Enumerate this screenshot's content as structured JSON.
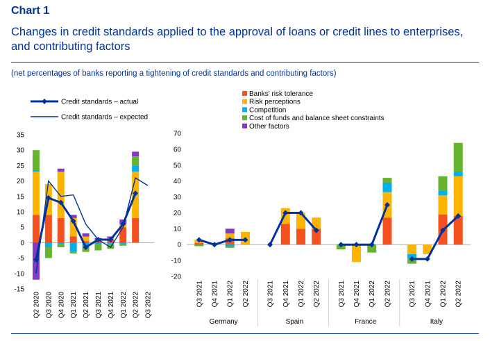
{
  "header": {
    "chart_number": "Chart 1",
    "title": "Changes in credit standards applied to the approval of loans or credit lines to enterprises, and contributing factors",
    "subtitle": "(net percentages of banks reporting a tightening of credit standards and contributing factors)"
  },
  "colors": {
    "banks_risk_tolerance": "#f4511e",
    "risk_perceptions": "#ffb400",
    "competition": "#00b1ea",
    "cost_of_funds": "#65b32e",
    "other_factors": "#8139c6",
    "credit_line": "#003299",
    "axis_text": "#000000"
  },
  "chart_data": [
    {
      "type": "bar",
      "id": "euro_area",
      "stacked": true,
      "categories": [
        "Q2 2020",
        "Q3 2020",
        "Q4 2020",
        "Q1 2021",
        "Q2 2021",
        "Q3 2021",
        "Q4 2021",
        "Q1 2022",
        "Q2 2022",
        "Q3 2022"
      ],
      "ylim": [
        -15,
        35
      ],
      "yticks": [
        "35",
        "30",
        "25",
        "20",
        "15",
        "10",
        "5",
        "0",
        "-5",
        "-10",
        "-15"
      ],
      "series": [
        {
          "name": "Banks' risk tolerance",
          "values": [
            9,
            9,
            8,
            2,
            0.5,
            0.5,
            1,
            5,
            8,
            null
          ]
        },
        {
          "name": "Risk perceptions",
          "values": [
            14,
            10,
            15,
            6,
            1.5,
            0.5,
            0.5,
            1,
            15,
            null
          ]
        },
        {
          "name": "Competition",
          "values": [
            0.5,
            -1.5,
            -0.5,
            -3,
            -1,
            -0.5,
            -0.5,
            -0.5,
            2,
            null
          ]
        },
        {
          "name": "Cost of funds and balance sheet constraints",
          "values": [
            6.5,
            -3.5,
            -1,
            -0.5,
            -2,
            -2,
            -1.5,
            -0.5,
            3,
            null
          ]
        },
        {
          "name": "Other factors",
          "values": [
            -12,
            0,
            1,
            1,
            1,
            0.5,
            0.5,
            1.5,
            1.5,
            null
          ]
        }
      ],
      "lines": [
        {
          "name": "Credit standards – actual",
          "values": [
            -5.5,
            14.5,
            13,
            7,
            -1.5,
            1,
            1,
            6,
            16,
            null
          ]
        },
        {
          "name": "Credit standards – expected",
          "values": [
            -10,
            20,
            15,
            15.5,
            6,
            1,
            -1.5,
            5,
            21,
            18.5
          ]
        }
      ]
    },
    {
      "type": "bar",
      "id": "by_country",
      "stacked": true,
      "ylim": [
        -20,
        70
      ],
      "yticks": [
        "70",
        "60",
        "50",
        "40",
        "30",
        "20",
        "10",
        "0",
        "-10",
        "-20"
      ],
      "groups": [
        {
          "name": "Germany",
          "categories": [
            "Q3 2021",
            "Q4 2021",
            "Q1 2022",
            "Q2 2022"
          ],
          "series": [
            {
              "name": "Banks' risk tolerance",
              "values": [
                1,
                0,
                4,
                0
              ]
            },
            {
              "name": "Risk perceptions",
              "values": [
                2,
                0,
                3,
                8
              ]
            },
            {
              "name": "Competition",
              "values": [
                0,
                0,
                -1,
                0
              ]
            },
            {
              "name": "Cost of funds and balance sheet constraints",
              "values": [
                -1,
                0,
                -1,
                0
              ]
            },
            {
              "name": "Other factors",
              "values": [
                0,
                0,
                3,
                0
              ]
            }
          ],
          "actual": [
            3,
            0,
            3,
            3
          ]
        },
        {
          "name": "Spain",
          "categories": [
            "Q3 2021",
            "Q4 2021",
            "Q1 2022",
            "Q2 2022"
          ],
          "series": [
            {
              "name": "Banks' risk tolerance",
              "values": [
                0,
                13,
                10,
                10
              ]
            },
            {
              "name": "Risk perceptions",
              "values": [
                0,
                10,
                10,
                7
              ]
            },
            {
              "name": "Competition",
              "values": [
                0,
                0,
                0,
                0
              ]
            },
            {
              "name": "Cost of funds and balance sheet constraints",
              "values": [
                0,
                0,
                0,
                0
              ]
            },
            {
              "name": "Other factors",
              "values": [
                0,
                0,
                0,
                0
              ]
            }
          ],
          "actual": [
            0,
            20,
            20,
            9
          ]
        },
        {
          "name": "France",
          "categories": [
            "Q3 2021",
            "Q4 2021",
            "Q1 2022",
            "Q2 2022"
          ],
          "series": [
            {
              "name": "Banks' risk tolerance",
              "values": [
                0,
                0,
                0,
                17
              ]
            },
            {
              "name": "Risk perceptions",
              "values": [
                0,
                -11,
                0,
                16
              ]
            },
            {
              "name": "Competition",
              "values": [
                0,
                0,
                0,
                6
              ]
            },
            {
              "name": "Cost of funds and balance sheet constraints",
              "values": [
                -3,
                0,
                -5,
                3
              ]
            },
            {
              "name": "Other factors",
              "values": [
                0,
                0,
                0,
                0
              ]
            }
          ],
          "actual": [
            0,
            0,
            0,
            25
          ]
        },
        {
          "name": "Italy",
          "categories": [
            "Q3 2021",
            "Q4 2021",
            "Q1 2022",
            "Q2 2022"
          ],
          "series": [
            {
              "name": "Banks' risk tolerance",
              "values": [
                0,
                0,
                19,
                18
              ]
            },
            {
              "name": "Risk perceptions",
              "values": [
                -6,
                -6,
                12,
                25
              ]
            },
            {
              "name": "Competition",
              "values": [
                -3,
                0,
                3,
                3
              ]
            },
            {
              "name": "Cost of funds and balance sheet constraints",
              "values": [
                -3,
                0,
                9,
                18
              ]
            },
            {
              "name": "Other factors",
              "values": [
                0,
                0,
                0,
                0
              ]
            }
          ],
          "actual": [
            -9,
            -9,
            9,
            18
          ]
        }
      ]
    }
  ],
  "legend": {
    "lines": [
      "Credit standards – actual",
      "Credit standards – expected"
    ],
    "bars": [
      "Banks' risk tolerance",
      "Risk perceptions",
      "Competition",
      "Cost of funds and balance sheet constraints",
      "Other factors"
    ]
  }
}
